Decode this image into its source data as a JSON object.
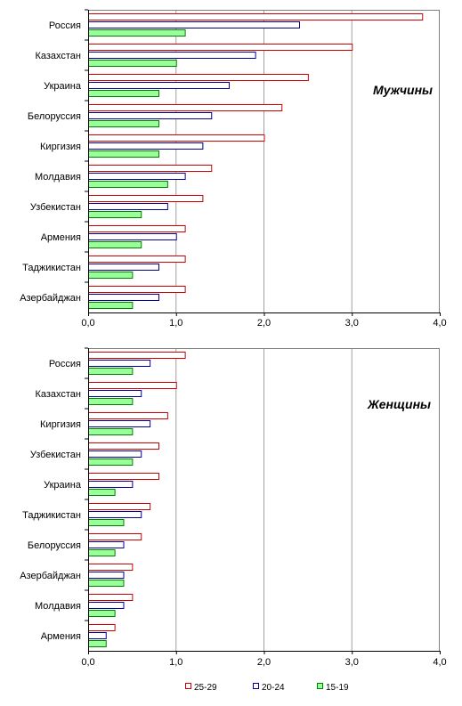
{
  "chart_data": [
    {
      "type": "bar",
      "orientation": "horizontal",
      "title": "Мужчины",
      "categories": [
        "Россия",
        "Казахстан",
        "Украина",
        "Белоруссия",
        "Киргизия",
        "Молдавия",
        "Узбекистан",
        "Армения",
        "Таджикистан",
        "Азербайджан"
      ],
      "series": [
        {
          "name": "25-29",
          "color": "#cc0000",
          "fill": "#ffffff",
          "values": [
            3.8,
            3.0,
            2.5,
            2.2,
            2.0,
            1.4,
            1.3,
            1.1,
            1.1,
            1.1
          ]
        },
        {
          "name": "20-24",
          "color": "#000099",
          "fill": "#ffffff",
          "values": [
            2.4,
            1.9,
            1.6,
            1.4,
            1.3,
            1.1,
            0.9,
            1.0,
            0.8,
            0.8
          ]
        },
        {
          "name": "15-19",
          "color": "#008000",
          "fill": "#99ff99",
          "values": [
            1.1,
            1.0,
            0.8,
            0.8,
            0.8,
            0.9,
            0.6,
            0.6,
            0.5,
            0.5
          ]
        }
      ],
      "xlim": [
        0,
        4
      ],
      "xticks": [
        "0,0",
        "1,0",
        "2,0",
        "3,0",
        "4,0"
      ],
      "grid": "vertical"
    },
    {
      "type": "bar",
      "orientation": "horizontal",
      "title": "Женщины",
      "categories": [
        "Россия",
        "Казахстан",
        "Киргизия",
        "Узбекистан",
        "Украина",
        "Таджикистан",
        "Белоруссия",
        "Азербайджан",
        "Молдавия",
        "Армения"
      ],
      "series": [
        {
          "name": "25-29",
          "color": "#cc0000",
          "fill": "#ffffff",
          "values": [
            1.1,
            1.0,
            0.9,
            0.8,
            0.8,
            0.7,
            0.6,
            0.5,
            0.5,
            0.3
          ]
        },
        {
          "name": "20-24",
          "color": "#000099",
          "fill": "#ffffff",
          "values": [
            0.7,
            0.6,
            0.7,
            0.6,
            0.5,
            0.6,
            0.4,
            0.4,
            0.4,
            0.2
          ]
        },
        {
          "name": "15-19",
          "color": "#008000",
          "fill": "#99ff99",
          "values": [
            0.5,
            0.5,
            0.5,
            0.5,
            0.3,
            0.4,
            0.3,
            0.4,
            0.3,
            0.2
          ]
        }
      ],
      "xlim": [
        0,
        4
      ],
      "xticks": [
        "0,0",
        "1,0",
        "2,0",
        "3,0",
        "4,0"
      ],
      "grid": "vertical"
    }
  ],
  "legend": {
    "placement": "bottom",
    "items": [
      {
        "label": "25-29",
        "color": "#cc0000",
        "fill": "#ffffff"
      },
      {
        "label": "20-24",
        "color": "#000099",
        "fill": "#ffffff"
      },
      {
        "label": "15-19",
        "color": "#008000",
        "fill": "#99ff99"
      }
    ]
  }
}
